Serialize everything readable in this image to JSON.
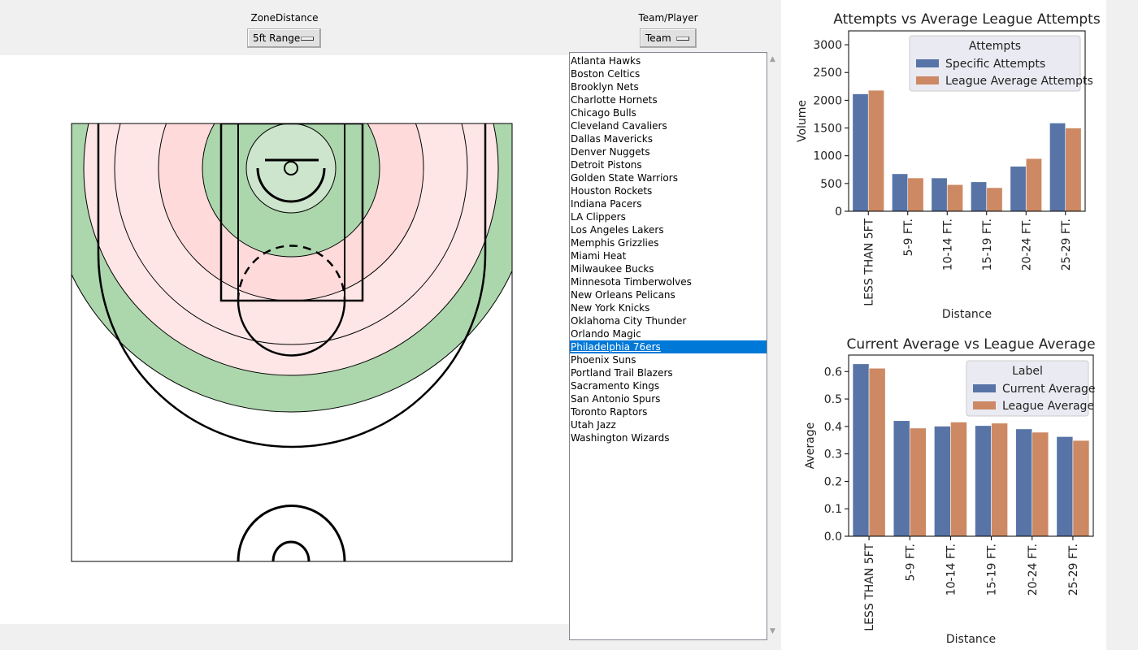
{
  "controls": {
    "zone_label": "ZoneDistance",
    "zone_value": "5ft Range",
    "mode_label": "Team/Player",
    "mode_value": "Team"
  },
  "teams": {
    "items": [
      "Atlanta Hawks",
      "Boston Celtics",
      "Brooklyn Nets",
      "Charlotte Hornets",
      "Chicago Bulls",
      "Cleveland Cavaliers",
      "Dallas Mavericks",
      "Denver Nuggets",
      "Detroit Pistons",
      "Golden State Warriors",
      "Houston Rockets",
      "Indiana Pacers",
      "LA Clippers",
      "Los Angeles Lakers",
      "Memphis Grizzlies",
      "Miami Heat",
      "Milwaukee Bucks",
      "Minnesota Timberwolves",
      "New Orleans Pelicans",
      "New York Knicks",
      "Oklahoma City Thunder",
      "Orlando Magic",
      "Philadelphia 76ers",
      "Phoenix Suns",
      "Portland Trail Blazers",
      "Sacramento Kings",
      "San Antonio Spurs",
      "Toronto Raptors",
      "Utah Jazz",
      "Washington Wizards"
    ],
    "selected": "Philadelphia 76ers"
  },
  "court_zones": {
    "zone_colors": [
      "#cde5cd",
      "#acd6ac",
      "#ffdada",
      "#ffe6e6",
      "#ffe6e6",
      "#acd6ac"
    ],
    "colors": {
      "green_light": "#cde5cd",
      "green": "#acd6ac",
      "red": "#ffdada",
      "red_light": "#ffe6e6"
    }
  },
  "chart_data": [
    {
      "type": "bar",
      "title": "Attempts vs Average League Attempts",
      "xlabel": "Distance",
      "ylabel": "Volume",
      "categories": [
        "LESS THAN 5FT",
        "5-9 FT.",
        "10-14 FT.",
        "15-19 FT.",
        "20-24 FT.",
        "25-29 FT."
      ],
      "ylim": [
        0,
        3250
      ],
      "yticks": [
        0,
        500,
        1000,
        1500,
        2000,
        2500,
        3000
      ],
      "ytick_labels": [
        "0",
        "500",
        "1000",
        "1500",
        "2000",
        "2500",
        "3000"
      ],
      "legend_title": "Attempts",
      "legend_position": "top-right",
      "series": [
        {
          "name": "Specific Attempts",
          "color": "#5874a7",
          "values": [
            2115,
            675,
            600,
            530,
            810,
            1590
          ]
        },
        {
          "name": "League Average Attempts",
          "color": "#cc8963",
          "values": [
            2180,
            600,
            480,
            425,
            950,
            1500
          ]
        }
      ]
    },
    {
      "type": "bar",
      "title": "Current Average vs League Average",
      "xlabel": "Distance",
      "ylabel": "Average",
      "categories": [
        "LESS THAN 5FT",
        "5-9 FT.",
        "10-14 FT.",
        "15-19 FT.",
        "20-24 FT.",
        "25-29 FT."
      ],
      "ylim": [
        0,
        0.66
      ],
      "yticks": [
        0,
        0.1,
        0.2,
        0.3,
        0.4,
        0.5,
        0.6
      ],
      "ytick_labels": [
        "0.0",
        "0.1",
        "0.2",
        "0.3",
        "0.4",
        "0.5",
        "0.6"
      ],
      "legend_title": "Label",
      "legend_position": "top-right",
      "series": [
        {
          "name": "Current Average",
          "color": "#5874a7",
          "values": [
            0.628,
            0.421,
            0.401,
            0.403,
            0.391,
            0.363
          ]
        },
        {
          "name": "League Average",
          "color": "#cc8963",
          "values": [
            0.612,
            0.394,
            0.416,
            0.412,
            0.379,
            0.349
          ]
        }
      ]
    }
  ]
}
